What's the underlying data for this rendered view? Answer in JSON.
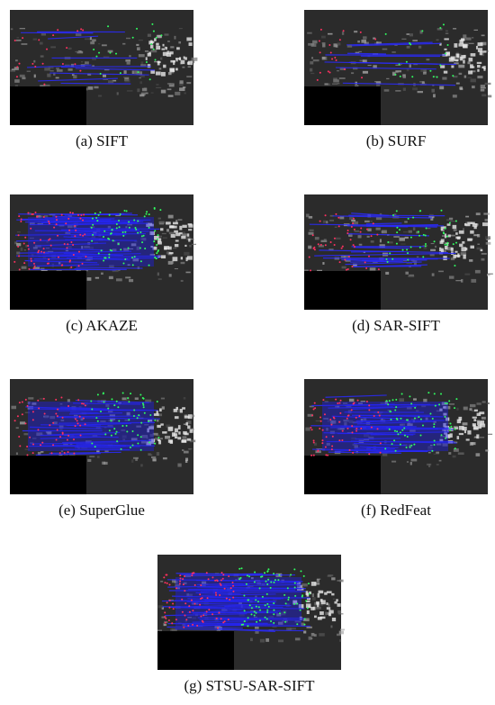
{
  "figure": {
    "panels": [
      {
        "caption": "(a) SIFT"
      },
      {
        "caption": "(b) SURF"
      },
      {
        "caption": "(c) AKAZE"
      },
      {
        "caption": "(d) SAR-SIFT"
      },
      {
        "caption": "(e) SuperGlue"
      },
      {
        "caption": "(f) RedFeat"
      },
      {
        "caption": "(g) STSU-SAR-SIFT"
      }
    ]
  }
}
